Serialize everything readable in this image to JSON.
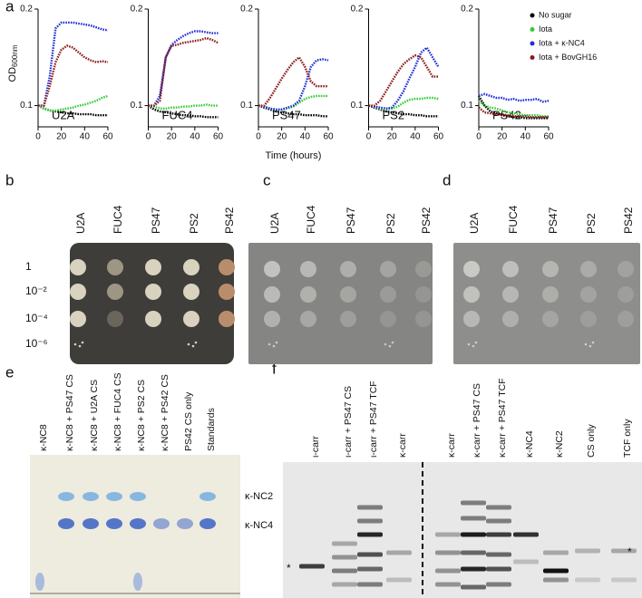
{
  "chart_data": [
    {
      "type": "line",
      "annotation": "U2A",
      "ylabel": "OD",
      "ylabel_subscript": "600nm",
      "x": [
        0,
        5,
        10,
        15,
        20,
        25,
        30,
        35,
        40,
        45,
        50,
        55,
        60
      ],
      "xlim": [
        0,
        60
      ],
      "xticks": [
        0,
        20,
        40,
        60
      ],
      "ylim": [
        0.078,
        0.2
      ],
      "yticks": [
        0.1,
        0.2
      ],
      "series": [
        {
          "color": "#000000",
          "values": [
            0.1,
            0.097,
            0.095,
            0.094,
            0.093,
            0.092,
            0.092,
            0.091,
            0.091,
            0.091,
            0.09,
            0.09,
            0.09
          ]
        },
        {
          "color": "#33cc33",
          "values": [
            0.1,
            0.097,
            0.095,
            0.095,
            0.096,
            0.097,
            0.098,
            0.1,
            0.101,
            0.103,
            0.105,
            0.108,
            0.11
          ]
        },
        {
          "color": "#1f2fd6",
          "values": [
            0.1,
            0.1,
            0.13,
            0.18,
            0.186,
            0.186,
            0.186,
            0.185,
            0.184,
            0.183,
            0.181,
            0.179,
            0.178
          ]
        },
        {
          "color": "#8b1a1a",
          "values": [
            0.1,
            0.1,
            0.12,
            0.145,
            0.158,
            0.162,
            0.16,
            0.155,
            0.15,
            0.147,
            0.145,
            0.146,
            0.145
          ]
        }
      ]
    },
    {
      "type": "line",
      "annotation": "FUC4",
      "x": [
        0,
        5,
        10,
        15,
        20,
        25,
        30,
        35,
        40,
        45,
        50,
        55,
        60
      ],
      "xlim": [
        0,
        60
      ],
      "xticks": [
        0,
        20,
        40,
        60
      ],
      "ylim": [
        0.078,
        0.2
      ],
      "yticks": [
        0.1,
        0.2
      ],
      "series": [
        {
          "color": "#000000",
          "values": [
            0.1,
            0.096,
            0.094,
            0.093,
            0.092,
            0.091,
            0.09,
            0.09,
            0.089,
            0.089,
            0.088,
            0.088,
            0.088
          ]
        },
        {
          "color": "#33cc33",
          "values": [
            0.1,
            0.099,
            0.097,
            0.097,
            0.098,
            0.098,
            0.099,
            0.099,
            0.1,
            0.1,
            0.101,
            0.1,
            0.1
          ]
        },
        {
          "color": "#1f2fd6",
          "values": [
            0.1,
            0.1,
            0.11,
            0.15,
            0.163,
            0.168,
            0.172,
            0.175,
            0.177,
            0.177,
            0.176,
            0.175,
            0.175
          ]
        },
        {
          "color": "#8b1a1a",
          "values": [
            0.1,
            0.1,
            0.105,
            0.15,
            0.162,
            0.163,
            0.165,
            0.166,
            0.167,
            0.168,
            0.17,
            0.168,
            0.165
          ]
        }
      ]
    },
    {
      "type": "line",
      "annotation": "PS47",
      "xlabel": "Time (hours)",
      "x": [
        0,
        5,
        10,
        15,
        20,
        25,
        30,
        35,
        40,
        45,
        50,
        55,
        60
      ],
      "xlim": [
        0,
        60
      ],
      "xticks": [
        0,
        20,
        40,
        60
      ],
      "ylim": [
        0.078,
        0.2
      ],
      "yticks": [
        0.1,
        0.2
      ],
      "series": [
        {
          "color": "#000000",
          "values": [
            0.1,
            0.098,
            0.096,
            0.094,
            0.093,
            0.092,
            0.091,
            0.091,
            0.09,
            0.09,
            0.09,
            0.089,
            0.089
          ]
        },
        {
          "color": "#33cc33",
          "values": [
            0.1,
            0.099,
            0.097,
            0.096,
            0.096,
            0.097,
            0.099,
            0.103,
            0.107,
            0.109,
            0.11,
            0.11,
            0.11
          ]
        },
        {
          "color": "#1f2fd6",
          "values": [
            0.1,
            0.099,
            0.097,
            0.096,
            0.096,
            0.098,
            0.1,
            0.105,
            0.12,
            0.14,
            0.147,
            0.148,
            0.147
          ]
        },
        {
          "color": "#8b1a1a",
          "values": [
            0.1,
            0.1,
            0.108,
            0.118,
            0.128,
            0.137,
            0.145,
            0.15,
            0.14,
            0.125,
            0.12,
            0.12,
            0.12
          ]
        }
      ]
    },
    {
      "type": "line",
      "annotation": "PS2",
      "x": [
        0,
        5,
        10,
        15,
        20,
        25,
        30,
        35,
        40,
        45,
        50,
        55,
        60
      ],
      "xlim": [
        0,
        60
      ],
      "xticks": [
        0,
        20,
        40,
        60
      ],
      "ylim": [
        0.078,
        0.2
      ],
      "yticks": [
        0.1,
        0.2
      ],
      "series": [
        {
          "color": "#000000",
          "values": [
            0.1,
            0.098,
            0.096,
            0.094,
            0.093,
            0.092,
            0.091,
            0.091,
            0.09,
            0.09,
            0.089,
            0.089,
            0.089
          ]
        },
        {
          "color": "#33cc33",
          "values": [
            0.1,
            0.099,
            0.097,
            0.096,
            0.097,
            0.099,
            0.103,
            0.106,
            0.107,
            0.107,
            0.108,
            0.108,
            0.107
          ]
        },
        {
          "color": "#1f2fd6",
          "values": [
            0.1,
            0.099,
            0.098,
            0.097,
            0.098,
            0.105,
            0.115,
            0.128,
            0.14,
            0.155,
            0.16,
            0.15,
            0.14
          ]
        },
        {
          "color": "#8b1a1a",
          "values": [
            0.1,
            0.1,
            0.105,
            0.115,
            0.125,
            0.135,
            0.143,
            0.148,
            0.152,
            0.15,
            0.14,
            0.13,
            0.13
          ]
        }
      ]
    },
    {
      "type": "line",
      "annotation": "PS42",
      "legend": "upper right",
      "x": [
        0,
        5,
        10,
        15,
        20,
        25,
        30,
        35,
        40,
        45,
        50,
        55,
        60
      ],
      "xlim": [
        0,
        60
      ],
      "xticks": [
        0,
        20,
        40,
        60
      ],
      "ylim": [
        0.078,
        0.2
      ],
      "yticks": [
        0.1,
        0.2
      ],
      "series": [
        {
          "name": "No sugar",
          "color": "#000000",
          "values": [
            0.11,
            0.1,
            0.094,
            0.092,
            0.09,
            0.089,
            0.088,
            0.088,
            0.087,
            0.087,
            0.087,
            0.087,
            0.087
          ]
        },
        {
          "name": "Iota",
          "color": "#33cc33",
          "values": [
            0.105,
            0.1,
            0.098,
            0.097,
            0.095,
            0.093,
            0.092,
            0.091,
            0.09,
            0.09,
            0.09,
            0.089,
            0.089
          ]
        },
        {
          "name": "Iota + κ-NC4",
          "color": "#1f2fd6",
          "values": [
            0.11,
            0.112,
            0.11,
            0.108,
            0.108,
            0.106,
            0.107,
            0.105,
            0.106,
            0.106,
            0.107,
            0.104,
            0.105
          ]
        },
        {
          "name": "Iota + BovGH16",
          "color": "#8b1a1a",
          "values": [
            0.098,
            0.093,
            0.092,
            0.091,
            0.091,
            0.09,
            0.089,
            0.089,
            0.089,
            0.088,
            0.088,
            0.088,
            0.088
          ]
        }
      ]
    }
  ],
  "panel_labels": [
    "a",
    "b",
    "c",
    "d",
    "e",
    "f"
  ],
  "spot_assays": {
    "columns": [
      "U2A",
      "FUC4",
      "PS47",
      "PS2",
      "PS42"
    ],
    "dilutions": [
      "1",
      "10⁻²",
      "10⁻⁴",
      "10⁻⁶"
    ]
  },
  "tlc": {
    "lanes": [
      "κ-NC8",
      "κ-NC8 + PS47 CS",
      "κ-NC8 + U2A CS",
      "κ-NC8 + FUC4 CS",
      "κ-NC8 + PS2 CS",
      "κ-NC8 + PS42 CS",
      "PS42 CS only",
      "Standards"
    ],
    "markers": [
      "κ-NC2",
      "κ-NC4"
    ]
  },
  "gel": {
    "lanes": [
      "ι-carr",
      "ι-carr + PS47 CS",
      "ι-carr + PS47 TCF",
      "κ-carr",
      "κ-carr",
      "κ-carr + PS47 CS",
      "κ-carr + PS47 TCF",
      "κ-NC4",
      "κ-NC2",
      "CS only",
      "TCF only"
    ],
    "markers": [
      "*",
      "*"
    ]
  }
}
